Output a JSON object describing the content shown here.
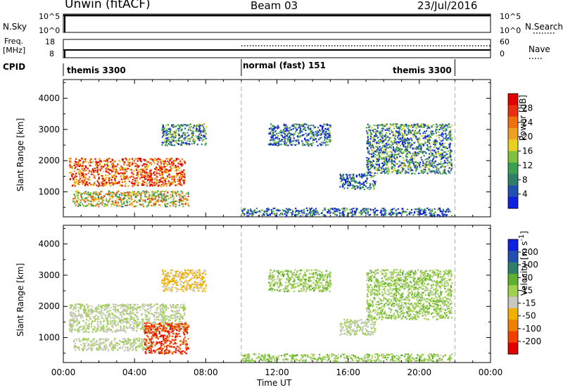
{
  "header": {
    "station": "Unwin (fitACF)",
    "beam": "Beam 03",
    "date": "23/Jul/2016"
  },
  "top_panels": {
    "nsky_label": "N.Sky",
    "nsearch_label": "N.Search",
    "freq_label": "Freq.",
    "freq_unit": "[MHz]",
    "nave_label": "Nave",
    "cpid_label": "CPID",
    "left_ticks_nsky": [
      "10^5",
      "10^0"
    ],
    "right_ticks_nsky": [
      "10^5",
      "10^0"
    ],
    "left_ticks_freq": [
      "18",
      "8"
    ],
    "right_ticks_nave": [
      "60",
      "0"
    ],
    "cpid_segments": [
      {
        "label": "themis 3300",
        "start": 0,
        "end": 10
      },
      {
        "label": "normal (fast) 151",
        "start": 10,
        "end": 22
      },
      {
        "label": "themis 3300",
        "start": 22,
        "end": 22
      }
    ]
  },
  "x_axis": {
    "label": "Time UT",
    "ticks": [
      "00:00",
      "04:00",
      "08:00",
      "12:00",
      "16:00",
      "20:00",
      "00:00"
    ]
  },
  "colors": {
    "power_scale": [
      "#1020e0",
      "#2050b0",
      "#2f7e6a",
      "#3aa050",
      "#80c040",
      "#e8d020",
      "#f0a020",
      "#f07010",
      "#e83010",
      "#e00000"
    ],
    "velocity_scale": [
      "#e00000",
      "#f04000",
      "#f08000",
      "#f0b000",
      "#c8c8c0",
      "#a0d050",
      "#60b030",
      "#2f7e6a",
      "#2050b0",
      "#1020e0"
    ]
  },
  "chart_data": [
    {
      "type": "heatmap",
      "title": "",
      "xlabel": "Time UT",
      "ylabel": "Slant Range [km]",
      "xlim": [
        0,
        24
      ],
      "ylim": [
        200,
        4600
      ],
      "yticks": [
        1000,
        2000,
        3000,
        4000
      ],
      "colorbar": {
        "label": "Power [dB]",
        "ticks": [
          "28",
          "24",
          "20",
          "16",
          "12",
          "8",
          "4"
        ],
        "range": [
          0,
          30
        ]
      },
      "regions": [
        {
          "t0": 0.3,
          "t1": 6.8,
          "r0": 1200,
          "r1": 2100,
          "value": 24
        },
        {
          "t0": 0.5,
          "t1": 7.0,
          "r0": 550,
          "r1": 1050,
          "value": 16
        },
        {
          "t0": 5.5,
          "t1": 8.0,
          "r0": 2500,
          "r1": 3200,
          "value": 8
        },
        {
          "t0": 11.5,
          "t1": 15.0,
          "r0": 2500,
          "r1": 3200,
          "value": 6
        },
        {
          "t0": 15.5,
          "t1": 17.5,
          "r0": 1100,
          "r1": 1600,
          "value": 6
        },
        {
          "t0": 17.0,
          "t1": 21.8,
          "r0": 1600,
          "r1": 3200,
          "value": 8
        },
        {
          "t0": 10.0,
          "t1": 21.8,
          "r0": 250,
          "r1": 500,
          "value": 6
        }
      ]
    },
    {
      "type": "heatmap",
      "title": "",
      "xlabel": "Time UT",
      "ylabel": "Slant Range [km]",
      "xlim": [
        0,
        24
      ],
      "ylim": [
        200,
        4600
      ],
      "yticks": [
        1000,
        2000,
        3000,
        4000
      ],
      "colorbar": {
        "label": "Velocity [m s^-1]",
        "ticks": [
          "200",
          "100",
          "50",
          "15",
          "-15",
          "-50",
          "-100",
          "-200"
        ],
        "range": [
          -250,
          250
        ]
      },
      "regions": [
        {
          "t0": 0.3,
          "t1": 6.8,
          "r0": 1200,
          "r1": 2100,
          "value": 0
        },
        {
          "t0": 0.5,
          "t1": 5.0,
          "r0": 600,
          "r1": 1000,
          "value": 0
        },
        {
          "t0": 4.5,
          "t1": 7.0,
          "r0": 500,
          "r1": 1500,
          "value": -180
        },
        {
          "t0": 5.5,
          "t1": 8.0,
          "r0": 2500,
          "r1": 3200,
          "value": -60
        },
        {
          "t0": 11.5,
          "t1": 15.0,
          "r0": 2500,
          "r1": 3200,
          "value": 30
        },
        {
          "t0": 15.5,
          "t1": 17.5,
          "r0": 1100,
          "r1": 1600,
          "value": 0
        },
        {
          "t0": 17.0,
          "t1": 21.8,
          "r0": 1600,
          "r1": 3200,
          "value": 30
        },
        {
          "t0": 10.0,
          "t1": 21.8,
          "r0": 250,
          "r1": 500,
          "value": 30
        }
      ]
    }
  ]
}
